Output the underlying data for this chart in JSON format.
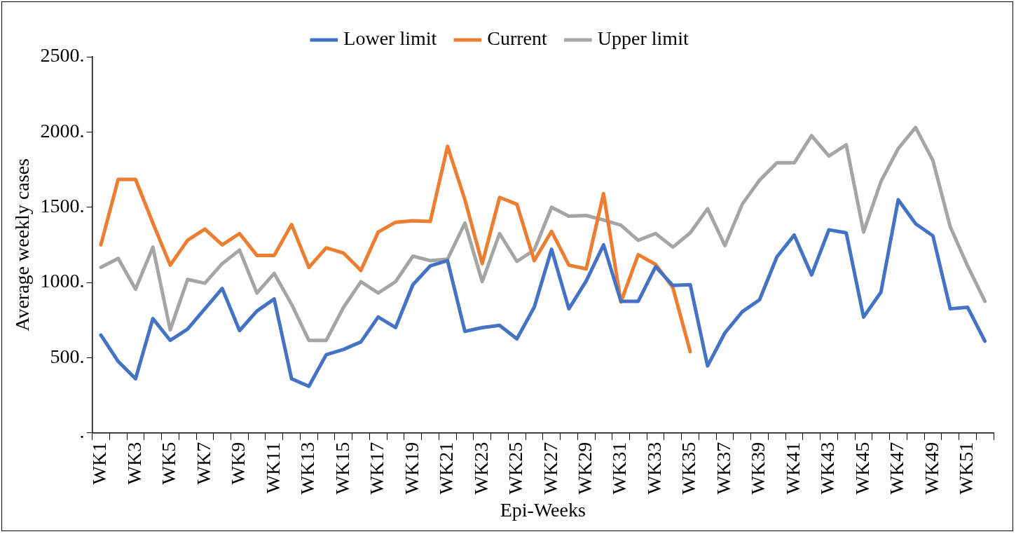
{
  "chart_data": {
    "type": "line",
    "xlabel": "Epi-Weeks",
    "ylabel": "Average weekly cases",
    "categories": [
      "WK1",
      null,
      "WK3",
      null,
      "WK5",
      null,
      "WK7",
      null,
      "WK9",
      null,
      "WK11",
      null,
      "WK13",
      null,
      "WK15",
      null,
      "WK17",
      null,
      "WK19",
      null,
      "WK21",
      null,
      "WK23",
      null,
      "WK25",
      null,
      "WK27",
      null,
      "WK29",
      null,
      "WK31",
      null,
      "WK33",
      null,
      "WK35",
      null,
      "WK37",
      null,
      "WK39",
      null,
      "WK41",
      null,
      "WK43",
      null,
      "WK45",
      null,
      "WK47",
      null,
      "WK49",
      null,
      "WK51",
      null
    ],
    "series": [
      {
        "name": "Lower limit",
        "color": "#4472c4",
        "values": [
          650,
          475,
          360,
          760,
          615,
          690,
          825,
          960,
          680,
          810,
          890,
          360,
          310,
          520,
          555,
          605,
          770,
          700,
          985,
          1110,
          1145,
          675,
          700,
          715,
          625,
          835,
          1220,
          825,
          1010,
          1250,
          875,
          875,
          1105,
          980,
          985,
          445,
          665,
          805,
          885,
          1170,
          1315,
          1050,
          1350,
          1330,
          770,
          935,
          1550,
          1390,
          1310,
          825,
          835,
          610
        ]
      },
      {
        "name": "Current",
        "color": "#ed7d31",
        "values": [
          1250,
          1685,
          1685,
          1395,
          1115,
          1280,
          1355,
          1250,
          1325,
          1180,
          1180,
          1385,
          1100,
          1230,
          1195,
          1080,
          1335,
          1400,
          1410,
          1405,
          1905,
          1550,
          1125,
          1565,
          1520,
          1145,
          1340,
          1115,
          1090,
          1590,
          870,
          1185,
          1120,
          965,
          540,
          null,
          null,
          null,
          null,
          null,
          null,
          null,
          null,
          null,
          null,
          null,
          null,
          null,
          null,
          null,
          null,
          null
        ]
      },
      {
        "name": "Upper limit",
        "color": "#a5a5a5",
        "values": [
          1100,
          1160,
          955,
          1235,
          685,
          1020,
          995,
          1125,
          1215,
          930,
          1060,
          855,
          615,
          615,
          835,
          1005,
          930,
          1005,
          1175,
          1145,
          1155,
          1395,
          1005,
          1325,
          1140,
          1215,
          1500,
          1440,
          1445,
          1415,
          1380,
          1280,
          1325,
          1235,
          1330,
          1490,
          1245,
          1520,
          1680,
          1795,
          1795,
          1975,
          1840,
          1915,
          1335,
          1670,
          1890,
          2030,
          1810,
          1370,
          1110,
          875
        ]
      }
    ],
    "ylim": [
      0,
      2500
    ],
    "yticks": [
      {
        "value": 0,
        "label": "."
      },
      {
        "value": 500,
        "label": "500."
      },
      {
        "value": 1000,
        "label": "1000."
      },
      {
        "value": 1500,
        "label": "1500."
      },
      {
        "value": 2000,
        "label": "2000."
      },
      {
        "value": 2500,
        "label": "2500."
      }
    ],
    "grid": false,
    "legend": "top",
    "marker": "none",
    "line_style": "solid"
  }
}
